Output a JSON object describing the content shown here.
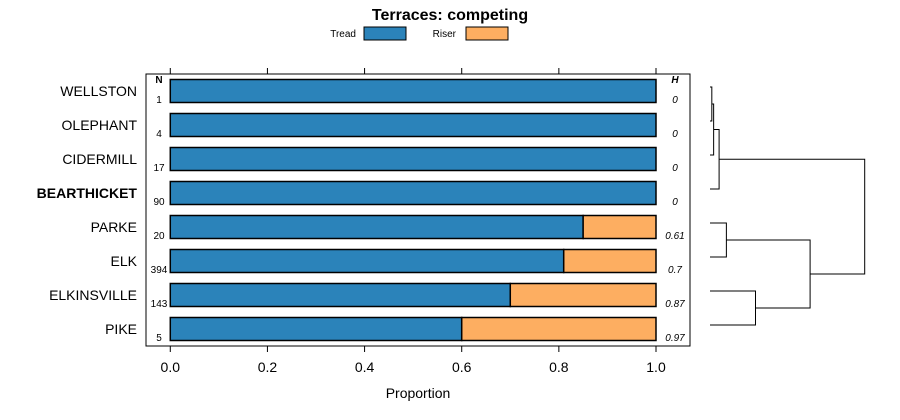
{
  "chart_data": {
    "type": "bar",
    "orientation": "horizontal",
    "stacked": true,
    "title": "Terraces: competing",
    "xlabel": "Proportion",
    "ylabel": "",
    "xlim": [
      -0.05,
      1.07
    ],
    "xticks": [
      0.0,
      0.2,
      0.4,
      0.6,
      0.8,
      1.0
    ],
    "xtick_labels": [
      "0.0",
      "0.2",
      "0.4",
      "0.6",
      "0.8",
      "1.0"
    ],
    "legend_placement": "top",
    "grid": false,
    "n_header": "N",
    "h_header": "H",
    "categories": [
      "WELLSTON",
      "OLEPHANT",
      "CIDERMILL",
      "BEARTHICKET",
      "PARKE",
      "ELK",
      "ELKINSVILLE",
      "PIKE"
    ],
    "highlighted_category": "BEARTHICKET",
    "n_values": [
      "1",
      "4",
      "17",
      "90",
      "20",
      "394",
      "143",
      "5"
    ],
    "h_values": [
      "0",
      "0",
      "0",
      "0",
      "0.61",
      "0.7",
      "0.87",
      "0.97"
    ],
    "series": [
      {
        "name": "Tread",
        "color": "#2b83ba",
        "values": [
          1.0,
          1.0,
          1.0,
          1.0,
          0.85,
          0.81,
          0.7,
          0.6
        ]
      },
      {
        "name": "Riser",
        "color": "#fdae61",
        "values": [
          0.0,
          0.0,
          0.0,
          0.0,
          0.15,
          0.19,
          0.3,
          0.4
        ]
      }
    ],
    "dendrogram": {
      "description": "hierarchical clustering of the categories shown to the right of the plot",
      "merges": [
        {
          "left": "WELLSTON",
          "right": "OLEPHANT",
          "height": 0.01
        },
        {
          "left": "WELLSTON+OLEPHANT",
          "right": "CIDERMILL",
          "height": 0.02
        },
        {
          "left": "WELLSTON+OLEPHANT+CIDERMILL",
          "right": "BEARTHICKET",
          "height": 0.05
        },
        {
          "left": "PARKE",
          "right": "ELK",
          "height": 0.09
        },
        {
          "left": "ELKINSVILLE",
          "right": "PIKE",
          "height": 0.25
        },
        {
          "left": "PARKE+ELK",
          "right": "ELKINSVILLE+PIKE",
          "height": 0.55
        },
        {
          "left": "WELLSTON+OLEPHANT+CIDERMILL+BEARTHICKET",
          "right": "PARKE+ELK+ELKINSVILLE+PIKE",
          "height": 0.85
        }
      ]
    }
  }
}
